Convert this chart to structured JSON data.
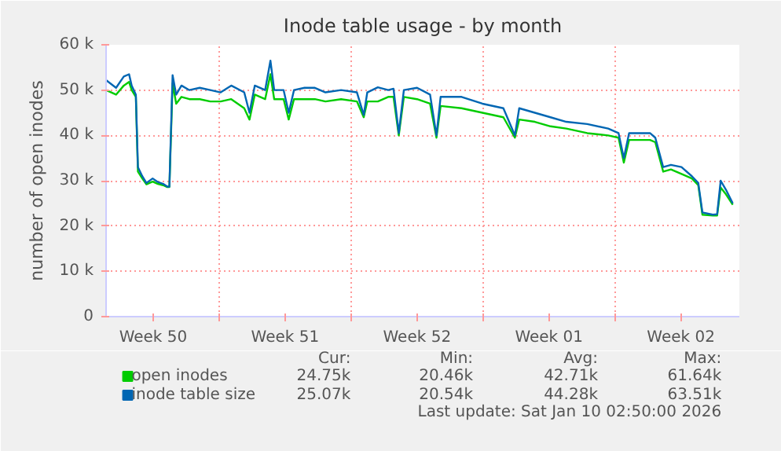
{
  "chart_data": {
    "type": "line",
    "title": "Inode table usage - by month",
    "ylabel": "number of open inodes",
    "x": [
      "2025-12-09T00:00",
      "2025-12-09T12:43",
      "2025-12-09T22:34",
      "2025-12-10T05:17",
      "2025-12-10T08:38",
      "2025-12-10T13:55",
      "2025-12-10T16:34",
      "2025-12-10T22:05",
      "2025-12-11T03:22",
      "2025-12-11T11:17",
      "2025-12-11T18:00",
      "2025-12-12T00:43",
      "2025-12-12T06:00",
      "2025-12-12T08:38",
      "2025-12-12T12:43",
      "2025-12-12T17:17",
      "2025-12-13T00:00",
      "2025-12-13T10:05",
      "2025-12-13T23:17",
      "2025-12-14T12:43",
      "2025-12-15T01:55",
      "2025-12-15T15:22",
      "2025-12-16T07:55",
      "2025-12-16T14:38",
      "2025-12-16T21:22",
      "2025-12-17T10:34",
      "2025-12-17T17:17",
      "2025-12-17T22:05",
      "2025-12-18T10:05",
      "2025-12-18T16:34",
      "2025-12-18T23:17",
      "2025-12-19T12:43",
      "2025-12-20T01:55",
      "2025-12-20T15:22",
      "2025-12-21T11:17",
      "2025-12-22T07:26",
      "2025-12-22T16:05",
      "2025-12-22T20:38",
      "2025-12-23T10:05",
      "2025-12-23T23:17",
      "2025-12-24T06:00",
      "2025-12-24T12:43",
      "2025-12-24T19:12",
      "2025-12-25T12:00",
      "2025-12-26T04:34",
      "2025-12-26T12:43",
      "2025-12-26T18:00",
      "2025-12-27T20:38",
      "2025-12-28T23:17",
      "2025-12-30T01:55",
      "2025-12-30T16:34",
      "2025-12-30T22:05",
      "2025-12-31T18:00",
      "2026-01-01T13:55",
      "2026-01-02T10:05",
      "2026-01-03T12:43",
      "2026-01-04T15:22",
      "2026-01-05T04:34",
      "2026-01-05T11:17",
      "2026-01-05T18:00",
      "2026-01-06T20:38",
      "2026-01-07T03:22",
      "2026-01-07T13:26",
      "2026-01-07T23:17",
      "2026-01-08T12:43",
      "2026-01-09T01:55",
      "2026-01-09T10:05",
      "2026-01-09T15:22",
      "2026-01-10T04:34",
      "2026-01-10T10:05",
      "2026-01-10T14:38",
      "2026-01-10T21:22",
      "2026-01-11T06:00"
    ],
    "series": [
      {
        "name": "open inodes",
        "color": "#00cc00",
        "values": [
          50000,
          49000,
          51000,
          51800,
          50000,
          48500,
          32000,
          30500,
          29200,
          29800,
          29300,
          29000,
          28600,
          28600,
          51500,
          47000,
          48500,
          48000,
          48000,
          47500,
          47500,
          48000,
          46000,
          43500,
          49000,
          48000,
          53500,
          48000,
          48000,
          43500,
          48000,
          48000,
          48000,
          47500,
          48000,
          47500,
          44000,
          47500,
          47500,
          48500,
          48500,
          40000,
          48500,
          48000,
          47000,
          39500,
          46500,
          46000,
          45000,
          44000,
          39500,
          43500,
          43000,
          42000,
          41500,
          40500,
          40000,
          39500,
          34000,
          39000,
          39000,
          38500,
          32000,
          32500,
          31500,
          30500,
          29000,
          22500,
          22300,
          22300,
          28500,
          27000,
          24700
        ]
      },
      {
        "name": "inode table size",
        "color": "#0066b3",
        "values": [
          52200,
          50500,
          53000,
          53500,
          51000,
          49000,
          33000,
          31000,
          29500,
          30500,
          29700,
          29300,
          28700,
          28700,
          53300,
          49000,
          51000,
          50000,
          50500,
          50000,
          49500,
          51000,
          49500,
          45000,
          51000,
          50000,
          56500,
          50000,
          50000,
          45000,
          50000,
          50500,
          50500,
          49500,
          50000,
          49500,
          44500,
          49500,
          50600,
          50000,
          50300,
          40500,
          50000,
          50500,
          49000,
          40000,
          48500,
          48500,
          47000,
          46000,
          40000,
          46000,
          45000,
          44000,
          43000,
          42500,
          41500,
          40500,
          35000,
          40500,
          40500,
          39500,
          33000,
          33500,
          33000,
          31000,
          29500,
          23000,
          22500,
          22600,
          30000,
          28000,
          25000
        ]
      }
    ],
    "xlim": [
      "2025-12-09T00:00",
      "2026-01-11T14:24"
    ],
    "xticks": [
      {
        "value": "2025-12-11T12:00",
        "label": "Week 50"
      },
      {
        "value": "2025-12-15",
        "label": null
      },
      {
        "value": "2025-12-18T12:00",
        "label": "Week 51"
      },
      {
        "value": "2025-12-22",
        "label": null
      },
      {
        "value": "2025-12-25T12:00",
        "label": "Week 52"
      },
      {
        "value": "2025-12-29",
        "label": null
      },
      {
        "value": "2026-01-01T12:00",
        "label": "Week 01"
      },
      {
        "value": "2026-01-05",
        "label": null
      },
      {
        "value": "2026-01-08T12:00",
        "label": "Week 02"
      }
    ],
    "ylim": [
      0,
      60000
    ],
    "yticks": [
      {
        "value": 0,
        "label": "0"
      },
      {
        "value": 10000,
        "label": "10 k"
      },
      {
        "value": 20000,
        "label": "20 k"
      },
      {
        "value": 30000,
        "label": "30 k"
      },
      {
        "value": 40000,
        "label": "40 k"
      },
      {
        "value": 50000,
        "label": "50 k"
      },
      {
        "value": 60000,
        "label": "60 k"
      }
    ],
    "grid": true,
    "legend": "bottom left",
    "line_style": "solid",
    "annotations": [
      "Cur:",
      "Min:",
      "Avg:",
      "Max:",
      "24.75k",
      "20.46k",
      "42.71k",
      "61.64k",
      "25.07k",
      "20.54k",
      "44.28k",
      "63.51k",
      "Last update: Sat Jan 10 02:50:00 2026"
    ]
  }
}
